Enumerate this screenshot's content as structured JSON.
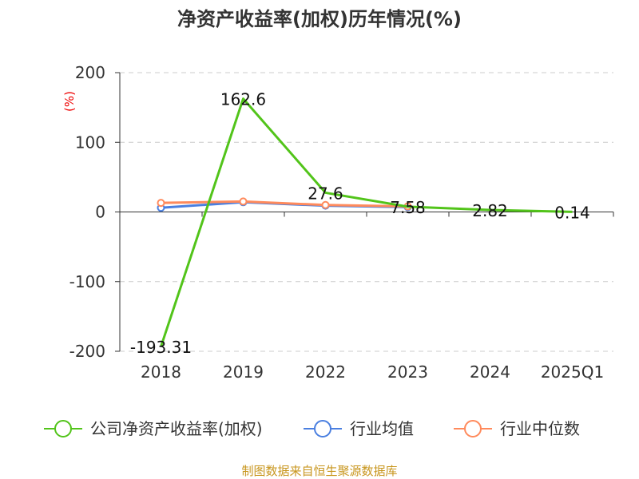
{
  "chart_data": {
    "type": "line",
    "title": "净资产收益率(加权)历年情况(%)",
    "ylabel": "(%)",
    "categories": [
      "2018",
      "2019",
      "2022",
      "2023",
      "2024",
      "2025Q1"
    ],
    "ylim": [
      -200,
      200
    ],
    "yticks": [
      200,
      100,
      0,
      -100,
      -200
    ],
    "grid": true,
    "legend_position": "bottom",
    "series": [
      {
        "name": "公司净资产收益率(加权)",
        "color": "#52c41a",
        "values": [
          -193.31,
          162.6,
          27.6,
          7.58,
          2.82,
          0.14
        ],
        "labels": [
          "-193.31",
          "162.6",
          "27.6",
          "7.58",
          "2.82",
          "0.14"
        ]
      },
      {
        "name": "行业均值",
        "color": "#4a7fe0",
        "values": [
          6,
          14,
          9,
          7,
          null,
          null
        ]
      },
      {
        "name": "行业中位数",
        "color": "#ff8a5c",
        "values": [
          13,
          15,
          10,
          8,
          null,
          null
        ]
      }
    ]
  },
  "source": "制图数据来自恒生聚源数据库"
}
